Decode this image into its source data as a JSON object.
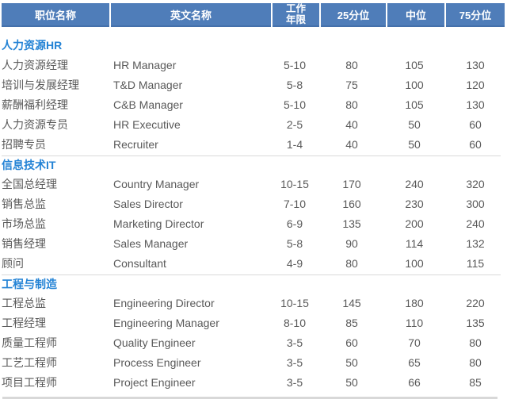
{
  "table": {
    "columns": [
      {
        "label": "职位名称"
      },
      {
        "label": "英文名称"
      },
      {
        "label": "工作\n年限"
      },
      {
        "label": "25分位"
      },
      {
        "label": "中位"
      },
      {
        "label": "75分位"
      }
    ],
    "sections": [
      {
        "title": "人力资源HR",
        "rows": [
          {
            "position": "人力资源经理",
            "english": "HR Manager",
            "years": "5-10",
            "p25": "80",
            "median": "105",
            "p75": "130"
          },
          {
            "position": "培训与发展经理",
            "english": "T&D Manager",
            "years": "5-8",
            "p25": "75",
            "median": "100",
            "p75": "120"
          },
          {
            "position": "薪酬福利经理",
            "english": "C&B Manager",
            "years": "5-10",
            "p25": "80",
            "median": "105",
            "p75": "130"
          },
          {
            "position": "人力资源专员",
            "english": "HR Executive",
            "years": "2-5",
            "p25": "40",
            "median": "50",
            "p75": "60"
          },
          {
            "position": "招聘专员",
            "english": "Recruiter",
            "years": "1-4",
            "p25": "40",
            "median": "50",
            "p75": "60"
          }
        ]
      },
      {
        "title": "信息技术IT",
        "rows": [
          {
            "position": "全国总经理",
            "english": "Country Manager",
            "years": "10-15",
            "p25": "170",
            "median": "240",
            "p75": "320"
          },
          {
            "position": "销售总监",
            "english": "Sales Director",
            "years": "7-10",
            "p25": "160",
            "median": "230",
            "p75": "300"
          },
          {
            "position": "市场总监",
            "english": "Marketing Director",
            "years": "6-9",
            "p25": "135",
            "median": "200",
            "p75": "240"
          },
          {
            "position": "销售经理",
            "english": "Sales Manager",
            "years": "5-8",
            "p25": "90",
            "median": "114",
            "p75": "132"
          },
          {
            "position": "顾问",
            "english": "Consultant",
            "years": "4-9",
            "p25": "80",
            "median": "100",
            "p75": "115"
          }
        ]
      },
      {
        "title": "工程与制造",
        "rows": [
          {
            "position": "工程总监",
            "english": "Engineering Director",
            "years": "10-15",
            "p25": "145",
            "median": "180",
            "p75": "220"
          },
          {
            "position": "工程经理",
            "english": "Engineering Manager",
            "years": "8-10",
            "p25": "85",
            "median": "110",
            "p75": "135"
          },
          {
            "position": "质量工程师",
            "english": "Quality Engineer",
            "years": "3-5",
            "p25": "60",
            "median": "70",
            "p75": "80"
          },
          {
            "position": "工艺工程师",
            "english": "Process Engineer",
            "years": "3-5",
            "p25": "50",
            "median": "65",
            "p75": "80"
          },
          {
            "position": "项目工程师",
            "english": "Project Engineer",
            "years": "3-5",
            "p25": "50",
            "median": "66",
            "p75": "85"
          }
        ]
      }
    ]
  },
  "colors": {
    "header_bg": "#4F7DB9",
    "header_border": "#4470AB",
    "header_text": "#FFFFFF",
    "section_title_text": "#2483D5",
    "body_text": "#595959",
    "divider": "#D9D9D9",
    "bottom_line": "#D8D8D8"
  }
}
